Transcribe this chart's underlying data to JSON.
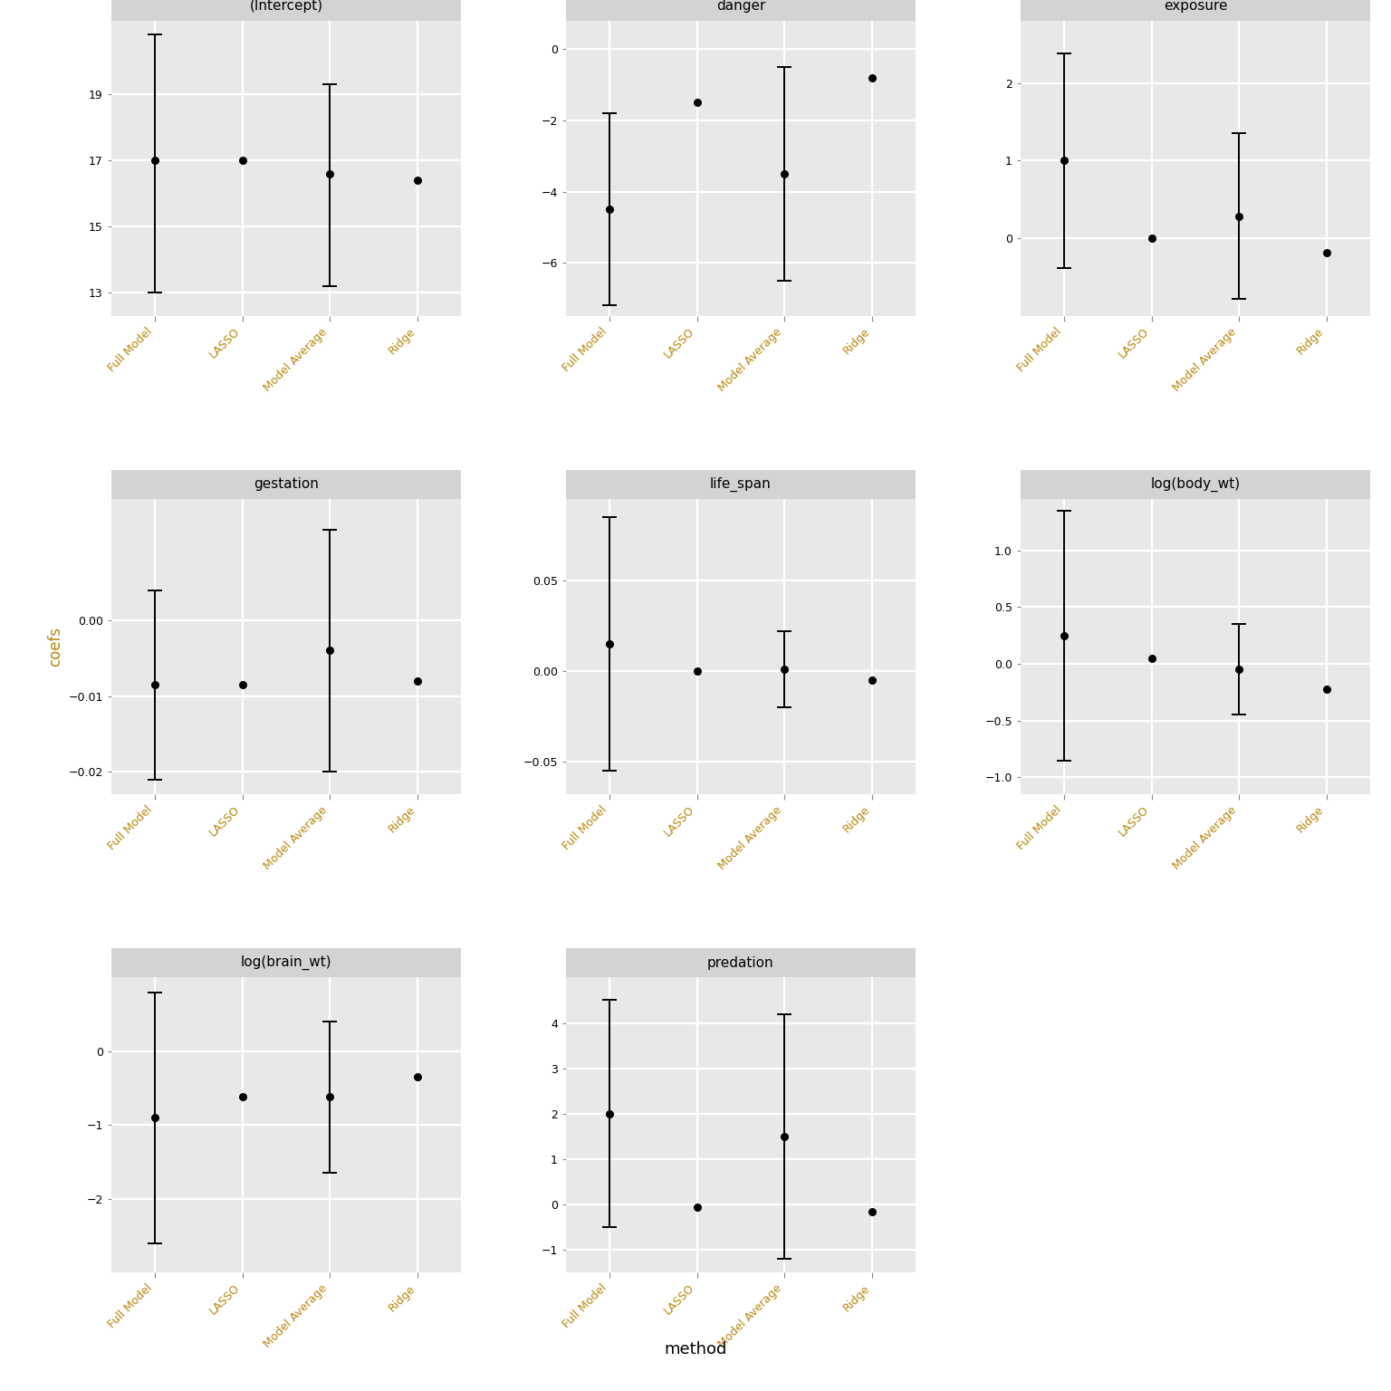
{
  "panels": [
    {
      "title": "(Intercept)",
      "coefs": [
        17.0,
        17.0,
        16.6,
        16.4
      ],
      "ci_low": [
        13.0,
        null,
        13.2,
        null
      ],
      "ci_high": [
        20.8,
        null,
        19.3,
        null
      ],
      "ylim": [
        12.3,
        21.2
      ],
      "yticks": [
        13,
        15,
        17,
        19
      ]
    },
    {
      "title": "danger",
      "coefs": [
        -4.5,
        -1.5,
        -3.5,
        -0.8
      ],
      "ci_low": [
        -7.2,
        null,
        -6.5,
        null
      ],
      "ci_high": [
        -1.8,
        null,
        -0.5,
        null
      ],
      "ylim": [
        -7.5,
        0.8
      ],
      "yticks": [
        -6,
        -4,
        -2,
        0
      ]
    },
    {
      "title": "exposure",
      "coefs": [
        1.0,
        0.0,
        0.28,
        -0.18
      ],
      "ci_low": [
        -0.38,
        null,
        -0.78,
        null
      ],
      "ci_high": [
        2.38,
        null,
        1.35,
        null
      ],
      "ylim": [
        -1.0,
        2.8
      ],
      "yticks": [
        0,
        1,
        2
      ]
    },
    {
      "title": "gestation",
      "coefs": [
        -0.0085,
        -0.0085,
        -0.004,
        -0.008
      ],
      "ci_low": [
        -0.021,
        null,
        -0.02,
        null
      ],
      "ci_high": [
        0.004,
        null,
        0.012,
        null
      ],
      "ylim": [
        -0.023,
        0.016
      ],
      "yticks": [
        -0.02,
        -0.01,
        0.0
      ]
    },
    {
      "title": "life_span",
      "coefs": [
        0.015,
        0.0,
        0.001,
        -0.005
      ],
      "ci_low": [
        -0.055,
        null,
        -0.02,
        null
      ],
      "ci_high": [
        0.085,
        null,
        0.022,
        null
      ],
      "ylim": [
        -0.068,
        0.095
      ],
      "yticks": [
        -0.05,
        0.0,
        0.05
      ]
    },
    {
      "title": "log(body_wt)",
      "coefs": [
        0.25,
        0.05,
        -0.05,
        -0.22
      ],
      "ci_low": [
        -0.85,
        null,
        -0.45,
        null
      ],
      "ci_high": [
        1.35,
        null,
        0.35,
        null
      ],
      "ylim": [
        -1.15,
        1.45
      ],
      "yticks": [
        -1.0,
        -0.5,
        0.0,
        0.5,
        1.0
      ]
    },
    {
      "title": "log(brain_wt)",
      "coefs": [
        -0.9,
        -0.62,
        -0.62,
        -0.35
      ],
      "ci_low": [
        -2.6,
        null,
        -1.65,
        null
      ],
      "ci_high": [
        0.8,
        null,
        0.4,
        null
      ],
      "ylim": [
        -3.0,
        1.0
      ],
      "yticks": [
        -2,
        -1,
        0
      ]
    },
    {
      "title": "predation",
      "coefs": [
        2.0,
        -0.05,
        1.5,
        -0.15
      ],
      "ci_low": [
        -0.5,
        null,
        -1.2,
        null
      ],
      "ci_high": [
        4.5,
        null,
        4.2,
        null
      ],
      "ylim": [
        -1.5,
        5.0
      ],
      "yticks": [
        -1,
        0,
        1,
        2,
        3,
        4
      ]
    }
  ],
  "methods": [
    "Full Model",
    "LASSO",
    "Model Average",
    "Ridge"
  ],
  "panel_bg": "#e8e8e8",
  "header_bg": "#d3d3d3",
  "grid_color": "#ffffff",
  "tick_label_color": "#b8860b",
  "dot_color": "black",
  "line_color": "black",
  "ylabel": "coefs",
  "xlabel": "method",
  "fig_bg": "white",
  "title_fontsize": 11,
  "tick_fontsize": 9,
  "ylabel_fontsize": 12,
  "xlabel_fontsize": 13
}
